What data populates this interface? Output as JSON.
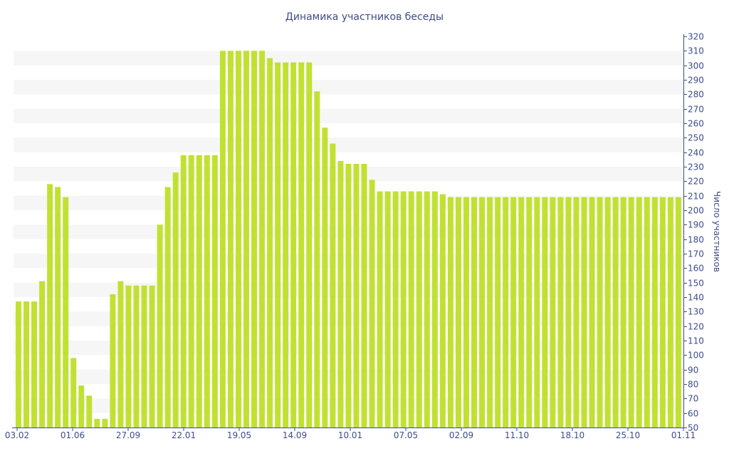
{
  "chart_data": {
    "type": "bar",
    "title": "Динамика участников беседы",
    "ylabel": "Число участников",
    "xlabel": "",
    "ylim": [
      50,
      320
    ],
    "ytick_step": 10,
    "y_axis_side": "right",
    "grid": "horizontal alternating bands",
    "x_tick_labels": [
      "03.02",
      "01.06",
      "27.09",
      "22.01",
      "19.05",
      "14.09",
      "10.01",
      "07.05",
      "02.09",
      "11.10",
      "18.10",
      "25.10",
      "01.11"
    ],
    "values": [
      137,
      137,
      137,
      151,
      218,
      216,
      209,
      98,
      79,
      72,
      56,
      56,
      142,
      151,
      148,
      148,
      148,
      148,
      190,
      216,
      226,
      238,
      238,
      238,
      238,
      238,
      310,
      310,
      310,
      310,
      310,
      310,
      305,
      302,
      302,
      302,
      302,
      302,
      282,
      257,
      246,
      234,
      232,
      232,
      232,
      221,
      213,
      213,
      213,
      213,
      213,
      213,
      213,
      213,
      211,
      209,
      209,
      209,
      209,
      209,
      209,
      209,
      209,
      209,
      209,
      209,
      209,
      209,
      209,
      209,
      209,
      209,
      209,
      209,
      209,
      209,
      209,
      209,
      209,
      209,
      209,
      209,
      209,
      209,
      209
    ]
  },
  "colors": {
    "bar": "#c1e132",
    "band": "#f6f6f6",
    "axis": "#3d4c8a",
    "text": "#3d4c8a"
  }
}
